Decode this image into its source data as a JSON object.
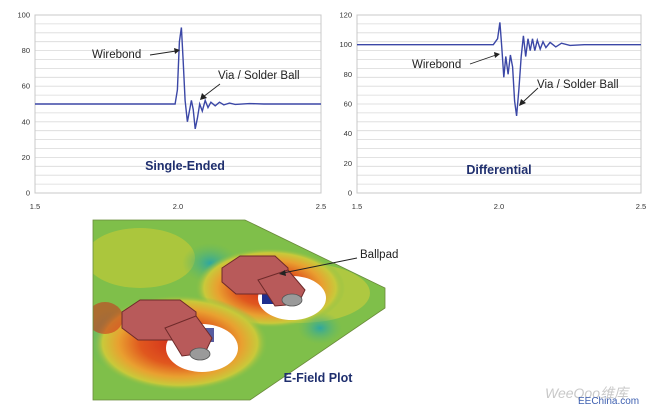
{
  "chart_data": [
    {
      "type": "line",
      "title": "Single-Ended",
      "xlabel": "",
      "ylabel": "",
      "xlim": [
        1.5,
        2.5
      ],
      "ylim": [
        0,
        100
      ],
      "xticks": [
        "1.5",
        "2.0",
        "2.5"
      ],
      "yticks": [
        "0",
        "20",
        "40",
        "60",
        "80",
        "100"
      ],
      "grid": true,
      "series": [
        {
          "x": [
            1.5,
            1.85,
            1.99,
            1.998,
            2.005,
            2.012,
            2.018,
            2.025,
            2.033,
            2.04,
            2.047,
            2.053,
            2.06,
            2.068,
            2.076,
            2.085,
            2.095,
            2.105,
            2.115,
            2.13,
            2.145,
            2.16,
            2.18,
            2.2,
            2.25,
            2.3,
            2.5
          ],
          "y": [
            50,
            50,
            50,
            58,
            85,
            93,
            75,
            52,
            40,
            46,
            52,
            47,
            36,
            42,
            50,
            46,
            52,
            48,
            51,
            49,
            51,
            49.5,
            50.5,
            49.8,
            50.2,
            50,
            50
          ]
        }
      ],
      "annotations": [
        "Wirebond",
        "Via / Solder Ball"
      ]
    },
    {
      "type": "line",
      "title": "Differential",
      "xlabel": "",
      "ylabel": "",
      "xlim": [
        1.5,
        2.5
      ],
      "ylim": [
        0,
        120
      ],
      "xticks": [
        "1.5",
        "2.0",
        "2.5"
      ],
      "yticks": [
        "0",
        "20",
        "40",
        "60",
        "80",
        "100",
        "120"
      ],
      "grid": true,
      "series": [
        {
          "x": [
            1.5,
            1.98,
            1.995,
            2.003,
            2.01,
            2.017,
            2.024,
            2.032,
            2.04,
            2.048,
            2.055,
            2.062,
            2.07,
            2.078,
            2.086,
            2.094,
            2.102,
            2.11,
            2.118,
            2.126,
            2.135,
            2.145,
            2.155,
            2.165,
            2.18,
            2.2,
            2.22,
            2.25,
            2.3,
            2.5
          ],
          "y": [
            100,
            100,
            104,
            115,
            98,
            78,
            92,
            80,
            93,
            85,
            62,
            52,
            70,
            92,
            106,
            92,
            104,
            96,
            104,
            96,
            103,
            97,
            102,
            98,
            101.5,
            98.5,
            101,
            99.5,
            100,
            100
          ]
        }
      ],
      "annotations": [
        "Wirebond",
        "Via / Solder Ball"
      ]
    }
  ],
  "efield": {
    "label": "Ballpad",
    "title": "E-Field Plot"
  },
  "watermark": {
    "brand": "WeeQoo维库",
    "site": "EEChina.com"
  },
  "colors": {
    "trace": "#3b47a6",
    "title": "#1f2f6e",
    "pad": "#b85a5a",
    "field_hot": "#d12a1c",
    "field_cool": "#2fa7a0"
  }
}
